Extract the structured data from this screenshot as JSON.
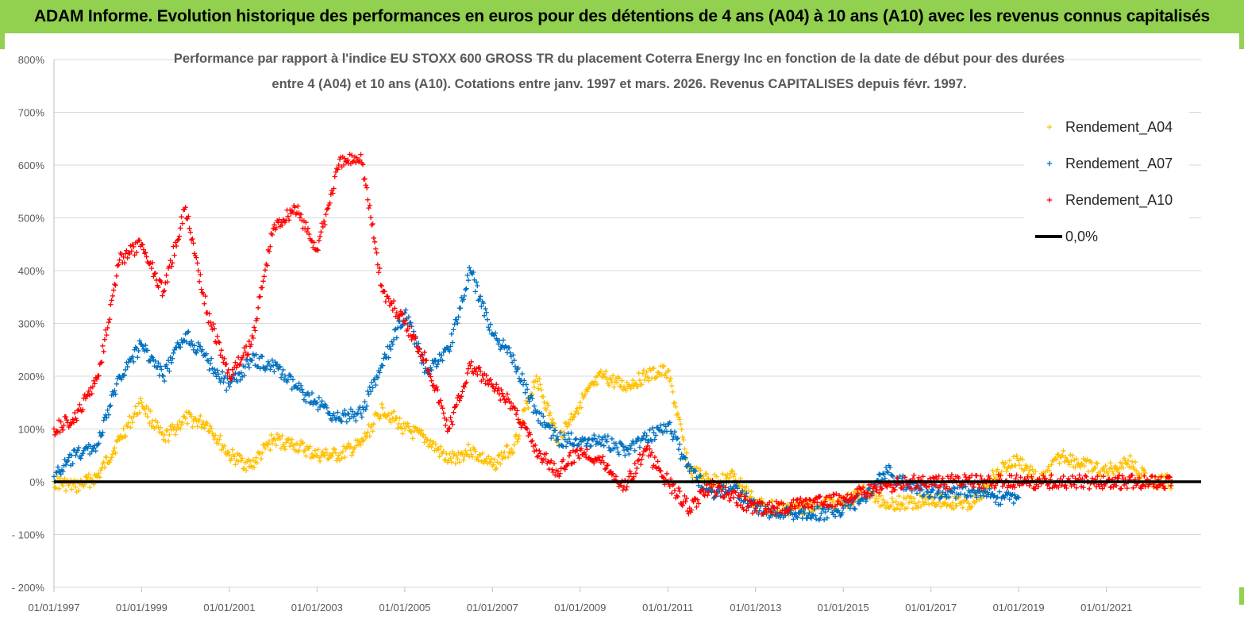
{
  "header": {
    "title": "ADAM Informe. Evolution historique des performances en euros pour des détentions de 4 ans (A04) à 10 ans (A10) avec les revenus connus capitalisés"
  },
  "colors": {
    "header_band": "#92d050",
    "A04": "#ffc000",
    "A07": "#0070c0",
    "A10": "#ff0000",
    "zero_line": "#000000"
  },
  "chart_data": {
    "type": "scatter",
    "title_line1": "Performance par rapport à l'indice EU STOXX 600 GROSS TR  du placement Coterra Energy Inc en fonction de la date de début pour des durées",
    "title_line2": "entre 4 (A04) et 10 ans (A10). Cotations entre janv. 1997 et mars. 2026. Revenus CAPITALISES depuis févr. 1997.",
    "xlabel": "",
    "ylabel": "",
    "x_range": [
      "1997-01-01",
      "2023-03-01"
    ],
    "ylim": [
      -200,
      800
    ],
    "y_ticks": [
      "800%",
      "700%",
      "600%",
      "500%",
      "400%",
      "300%",
      "200%",
      "100%",
      "0%",
      "- 100%",
      "- 200%"
    ],
    "x_ticks": [
      "01/01/1997",
      "01/01/1999",
      "01/01/2001",
      "01/01/2003",
      "01/01/2005",
      "01/01/2007",
      "01/01/2009",
      "01/01/2011",
      "01/01/2013",
      "01/01/2015",
      "01/01/2017",
      "01/01/2019",
      "01/01/2021"
    ],
    "grid": true,
    "legend_position": "top-right",
    "legend": [
      "Rendement_A04",
      "Rendement_A07",
      "Rendement_A10",
      "0,0%"
    ],
    "series": [
      {
        "name": "Rendement_A04",
        "x": [
          "1997-01",
          "1997-07",
          "1998-01",
          "1998-07",
          "1999-01",
          "1999-07",
          "2000-01",
          "2000-07",
          "2001-01",
          "2001-07",
          "2002-01",
          "2002-07",
          "2003-01",
          "2003-07",
          "2004-01",
          "2004-07",
          "2005-01",
          "2005-07",
          "2006-01",
          "2006-07",
          "2007-01",
          "2007-07",
          "2008-01",
          "2008-07",
          "2009-01",
          "2009-07",
          "2010-01",
          "2010-07",
          "2011-01",
          "2011-07",
          "2012-01",
          "2012-07",
          "2013-01",
          "2013-07",
          "2014-01",
          "2014-07",
          "2015-01",
          "2015-07",
          "2016-01",
          "2016-07",
          "2017-01",
          "2017-07",
          "2018-01",
          "2018-07",
          "2019-01",
          "2019-07",
          "2020-01",
          "2020-07",
          "2021-01",
          "2021-07",
          "2022-01",
          "2022-07"
        ],
        "values": [
          0,
          -10,
          10,
          80,
          150,
          80,
          120,
          110,
          50,
          30,
          80,
          70,
          50,
          50,
          70,
          140,
          100,
          80,
          40,
          60,
          30,
          70,
          200,
          80,
          150,
          200,
          180,
          200,
          210,
          20,
          0,
          10,
          -40,
          -50,
          -50,
          -40,
          -40,
          -20,
          -40,
          -40,
          -30,
          -40,
          -40,
          20,
          40,
          0,
          50,
          30,
          20,
          40,
          0,
          0
        ]
      },
      {
        "name": "Rendement_A07",
        "x": [
          "1997-01",
          "1997-07",
          "1998-01",
          "1998-07",
          "1999-01",
          "1999-07",
          "2000-01",
          "2000-07",
          "2001-01",
          "2001-07",
          "2002-01",
          "2002-07",
          "2003-01",
          "2003-07",
          "2004-01",
          "2004-07",
          "2005-01",
          "2005-07",
          "2006-01",
          "2006-07",
          "2007-01",
          "2007-07",
          "2008-01",
          "2008-07",
          "2009-01",
          "2009-07",
          "2010-01",
          "2010-07",
          "2011-01",
          "2011-07",
          "2012-01",
          "2012-07",
          "2013-01",
          "2013-07",
          "2014-01",
          "2014-07",
          "2015-01",
          "2015-07",
          "2016-01",
          "2016-07",
          "2017-01",
          "2017-07",
          "2018-01",
          "2018-07",
          "2019-01"
        ],
        "values": [
          10,
          50,
          70,
          200,
          260,
          200,
          280,
          230,
          180,
          230,
          220,
          180,
          150,
          120,
          130,
          220,
          320,
          210,
          250,
          400,
          280,
          230,
          130,
          80,
          80,
          80,
          60,
          80,
          110,
          20,
          -20,
          -10,
          -50,
          -60,
          -60,
          -60,
          -50,
          -30,
          20,
          -10,
          -20,
          -20,
          -20,
          -30,
          -30
        ]
      },
      {
        "name": "Rendement_A10",
        "x": [
          "1997-01",
          "1997-07",
          "1998-01",
          "1998-07",
          "1999-01",
          "1999-07",
          "2000-01",
          "2000-07",
          "2001-01",
          "2001-07",
          "2002-01",
          "2002-07",
          "2003-01",
          "2003-07",
          "2004-01",
          "2004-07",
          "2005-01",
          "2005-07",
          "2006-01",
          "2006-07",
          "2007-01",
          "2007-07",
          "2008-01",
          "2008-07",
          "2009-01",
          "2009-07",
          "2010-01",
          "2010-07",
          "2011-01",
          "2011-07",
          "2012-01",
          "2012-07",
          "2013-01",
          "2013-07",
          "2014-01",
          "2014-07",
          "2015-01",
          "2015-07",
          "2016-01",
          "2016-07",
          "2017-01",
          "2017-07",
          "2018-01",
          "2018-07",
          "2019-01",
          "2019-07",
          "2020-01",
          "2020-07",
          "2021-01",
          "2021-07",
          "2022-01",
          "2022-07"
        ],
        "values": [
          100,
          120,
          200,
          420,
          450,
          360,
          520,
          320,
          200,
          260,
          480,
          520,
          440,
          600,
          620,
          360,
          300,
          230,
          100,
          220,
          180,
          140,
          60,
          20,
          60,
          40,
          -10,
          60,
          0,
          -50,
          -10,
          -30,
          -50,
          -50,
          -40,
          -40,
          -30,
          -20,
          -10,
          0,
          0,
          0,
          0,
          0,
          0,
          0,
          0,
          0,
          0,
          0,
          0,
          0
        ]
      }
    ],
    "reference_line": {
      "name": "0,0%",
      "value": 0
    }
  }
}
